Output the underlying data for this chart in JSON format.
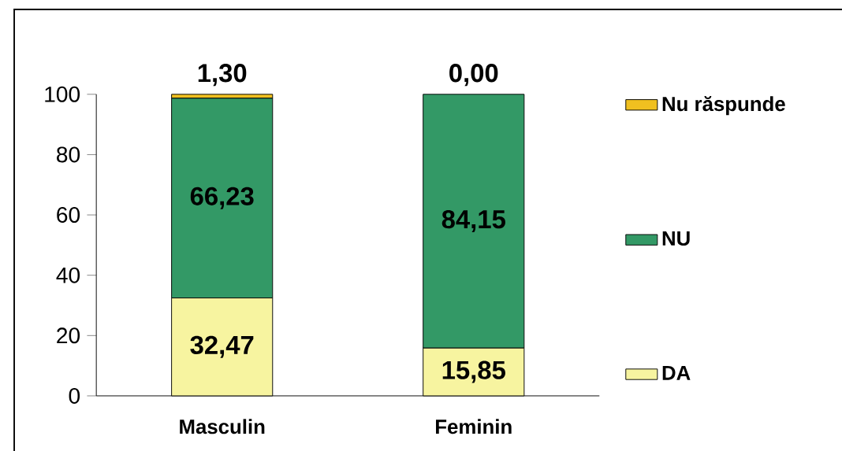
{
  "chart_data": {
    "type": "bar",
    "stacked": true,
    "categories": [
      "Masculin",
      "Feminin"
    ],
    "series": [
      {
        "name": "DA",
        "color": "#f7f4a0",
        "values": [
          32.47,
          15.85
        ],
        "value_labels": [
          "32,47",
          "15,85"
        ]
      },
      {
        "name": "NU",
        "color": "#339966",
        "values": [
          66.23,
          84.15
        ],
        "value_labels": [
          "66,23",
          "84,15"
        ]
      },
      {
        "name": "Nu răspunde",
        "color": "#f0c020",
        "values": [
          1.3,
          0.0
        ],
        "value_labels": [
          "1,30",
          "0,00"
        ]
      }
    ],
    "ylim": [
      0,
      100
    ],
    "yticks": [
      0,
      20,
      40,
      60,
      80,
      100
    ],
    "legend": "right"
  }
}
